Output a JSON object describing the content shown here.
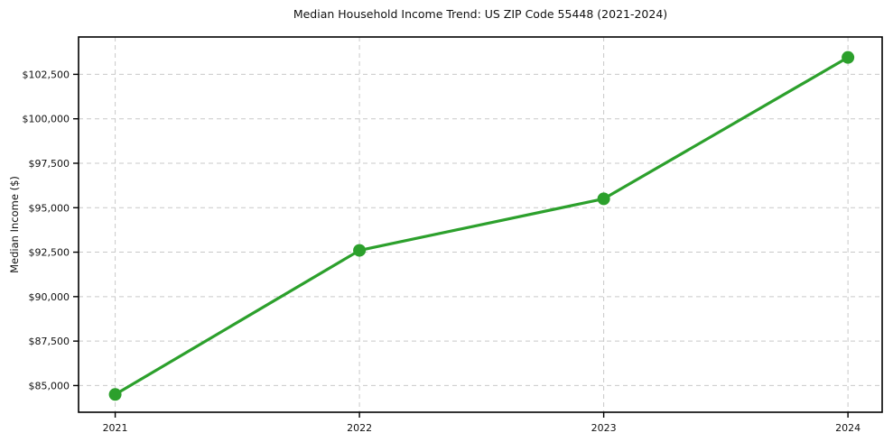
{
  "chart_data": {
    "type": "line",
    "title": "Median Household Income Trend: US ZIP Code 55448 (2021-2024)",
    "xlabel": "",
    "ylabel": "Median Income ($)",
    "series": [
      {
        "name": "Median Household Income",
        "x": [
          2021,
          2022,
          2023,
          2024
        ],
        "values": [
          84500,
          92600,
          95500,
          103450
        ]
      }
    ],
    "x_ticks": {
      "values": [
        2021,
        2022,
        2023,
        2024
      ],
      "labels": [
        "2021",
        "2022",
        "2023",
        "2024"
      ]
    },
    "y_ticks": {
      "values": [
        85000,
        87500,
        90000,
        92500,
        95000,
        97500,
        100000,
        102500
      ],
      "labels": [
        "$85,000",
        "$87,500",
        "$90,000",
        "$92,500",
        "$95,000",
        "$97,500",
        "$100,000",
        "$102,500"
      ]
    },
    "xlim": [
      2020.85,
      2024.14
    ],
    "ylim": [
      83500,
      104600
    ],
    "grid": true,
    "grid_line_style": "dashed",
    "legend_position": "none",
    "colors": {
      "line": "#2ca02c",
      "marker": "#2ca02c",
      "grid": "#c9c9c9",
      "axis_frame": "#000000",
      "text": "#111111",
      "background": "#ffffff"
    },
    "marker": "circle"
  }
}
